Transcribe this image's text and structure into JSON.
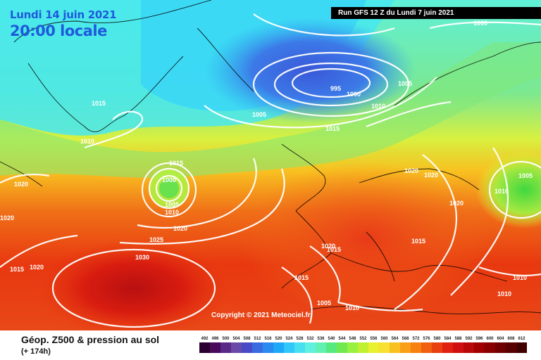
{
  "header": {
    "date": "Lundi 14 juin 2021",
    "time": "20:00 locale",
    "run": "Run GFS 12 Z du Lundi 7 juin 2021"
  },
  "copyright": "Copyright © 2021 Meteociel.fr",
  "footer": {
    "title": "Géop. Z500 & pression au sol",
    "subtitle": "(+ 174h)"
  },
  "isobar_labels": [
    {
      "id": "iso-1000-nw",
      "text": "1000"
    },
    {
      "id": "iso-1000-low",
      "text": "1000"
    },
    {
      "id": "iso-995-low",
      "text": "995"
    },
    {
      "id": "iso-1005-nsea",
      "text": "1005"
    },
    {
      "id": "iso-1005-iceland",
      "text": "1005"
    },
    {
      "id": "iso-1010-norway",
      "text": "1010"
    },
    {
      "id": "iso-1015-norway",
      "text": "1015"
    },
    {
      "id": "iso-1015-greenland",
      "text": "1015"
    },
    {
      "id": "iso-1010-greenland",
      "text": "1010"
    },
    {
      "id": "iso-1015-atl",
      "text": "1015"
    },
    {
      "id": "iso-1000-atl",
      "text": "1000"
    },
    {
      "id": "iso-1005-atl",
      "text": "1005"
    },
    {
      "id": "iso-1010-atl",
      "text": "1010"
    },
    {
      "id": "iso-1020-atl",
      "text": "1020"
    },
    {
      "id": "iso-1025-atl",
      "text": "1025"
    },
    {
      "id": "iso-1030-azores",
      "text": "1030"
    },
    {
      "id": "iso-1020-west",
      "text": "1020"
    },
    {
      "id": "iso-1020-west2",
      "text": "1020"
    },
    {
      "id": "iso-1015-sw",
      "text": "1015"
    },
    {
      "id": "iso-1020-sw",
      "text": "1020"
    },
    {
      "id": "iso-1020-central",
      "text": "1020"
    },
    {
      "id": "iso-1020-central2",
      "text": "1020"
    },
    {
      "id": "iso-1020-balkans",
      "text": "1020"
    },
    {
      "id": "iso-1005-russia",
      "text": "1005"
    },
    {
      "id": "iso-1010-russia",
      "text": "1010"
    },
    {
      "id": "iso-1020-spain",
      "text": "1020"
    },
    {
      "id": "iso-1015-spain",
      "text": "1015"
    },
    {
      "id": "iso-1015-italy",
      "text": "1015"
    },
    {
      "id": "iso-1015-morocco",
      "text": "1015"
    },
    {
      "id": "iso-1005-africa",
      "text": "1005"
    },
    {
      "id": "iso-1010-africa",
      "text": "1010"
    },
    {
      "id": "iso-1010-turkey",
      "text": "1010"
    },
    {
      "id": "iso-1010-east",
      "text": "1010"
    }
  ],
  "legend": {
    "labels": [
      "492",
      "496",
      "500",
      "504",
      "508",
      "512",
      "516",
      "520",
      "524",
      "528",
      "532",
      "536",
      "540",
      "544",
      "548",
      "552",
      "556",
      "560",
      "564",
      "568",
      "572",
      "576",
      "580",
      "584",
      "588",
      "592",
      "596",
      "600",
      "604",
      "608",
      "612"
    ],
    "colors": [
      "#2a0030",
      "#4a0a5a",
      "#5a2a88",
      "#6a4aa8",
      "#4a4ac8",
      "#3a6ae0",
      "#2a8af0",
      "#20a8f8",
      "#30c8f8",
      "#48e0f0",
      "#60f0e0",
      "#60f0b0",
      "#58e880",
      "#70e850",
      "#98f040",
      "#c0f030",
      "#e8f030",
      "#f8e030",
      "#f8c020",
      "#f8a018",
      "#f88010",
      "#f06010",
      "#e84010",
      "#e02010",
      "#d01010",
      "#b80808",
      "#a00000",
      "#880000",
      "#700000",
      "#580000",
      "#400000"
    ]
  }
}
